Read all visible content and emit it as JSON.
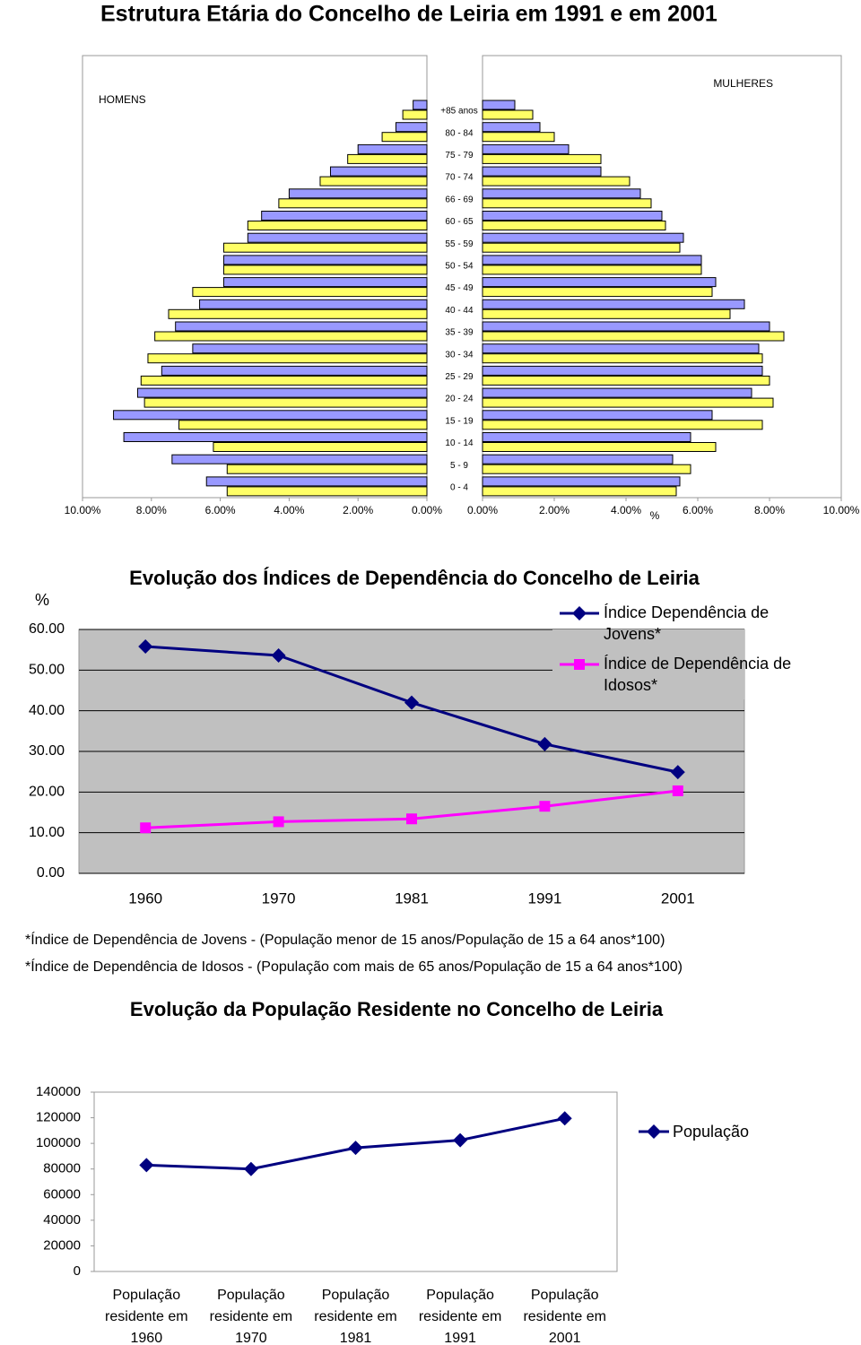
{
  "chart_data": [
    {
      "type": "pyramid",
      "title": "Estrutura Etária do Concelho de Leiria em 1991 e em 2001",
      "categories": [
        "+85 anos",
        "80 - 84",
        "75 - 79",
        "70 - 74",
        "66 - 69",
        "60 - 65",
        "55 - 59",
        "50 - 54",
        "45 - 49",
        "40 - 44",
        "35 - 39",
        "30 - 34",
        "25 - 29",
        "20 - 24",
        "15 - 19",
        "10 - 14",
        "5 - 9",
        "0 - 4"
      ],
      "xlabel": "%",
      "panels": [
        {
          "label": "HOMENS",
          "xlim": [
            10,
            0
          ],
          "xticks": [
            {
              "value": 10,
              "label": "10.00%"
            },
            {
              "value": 8,
              "label": "8.00%"
            },
            {
              "value": 6,
              "label": "6.00%"
            },
            {
              "value": 4,
              "label": "4.00%"
            },
            {
              "value": 2,
              "label": "2.00%"
            },
            {
              "value": 0,
              "label": "0.00%"
            }
          ],
          "series": [
            {
              "color": "#9999ff",
              "values": [
                0.4,
                0.9,
                2.0,
                2.8,
                4.0,
                4.8,
                5.2,
                5.9,
                5.9,
                6.6,
                7.3,
                6.8,
                7.7,
                8.4,
                9.1,
                8.8,
                7.4,
                6.4
              ]
            },
            {
              "color": "#ffff66",
              "values": [
                0.7,
                1.3,
                2.3,
                3.1,
                4.3,
                5.2,
                5.9,
                5.9,
                6.8,
                7.5,
                7.9,
                8.1,
                8.3,
                8.2,
                7.2,
                6.2,
                5.8,
                5.8
              ]
            }
          ]
        },
        {
          "label": "MULHERES",
          "xlim": [
            0,
            10
          ],
          "xticks": [
            {
              "value": 0,
              "label": "0.00%"
            },
            {
              "value": 2,
              "label": "2.00%"
            },
            {
              "value": 4,
              "label": "4.00%"
            },
            {
              "value": 6,
              "label": "6.00%"
            },
            {
              "value": 8,
              "label": "8.00%"
            },
            {
              "value": 10,
              "label": "10.00%"
            }
          ],
          "series": [
            {
              "color": "#9999ff",
              "values": [
                0.9,
                1.6,
                2.4,
                3.3,
                4.4,
                5.0,
                5.6,
                6.1,
                6.5,
                7.3,
                8.0,
                7.7,
                7.8,
                7.5,
                6.4,
                5.8,
                5.3,
                5.5
              ]
            },
            {
              "color": "#ffff66",
              "values": [
                1.4,
                2.0,
                3.3,
                4.1,
                4.7,
                5.1,
                5.5,
                6.1,
                6.4,
                6.9,
                8.4,
                7.8,
                8.0,
                8.1,
                7.8,
                6.5,
                5.8,
                5.4
              ]
            }
          ]
        }
      ]
    },
    {
      "type": "line",
      "title": "Evolução dos Índices de Dependência do Concelho de Leiria",
      "ylabel": "%",
      "categories": [
        "1960",
        "1970",
        "1981",
        "1991",
        "2001"
      ],
      "series": [
        {
          "name": "Índice Dependência de Jovens*",
          "color": "#000080",
          "marker": "diamond",
          "values": [
            55.8,
            53.6,
            42.0,
            31.8,
            24.9
          ]
        },
        {
          "name": "Índice de Dependência de Idosos*",
          "color": "#ff00ff",
          "marker": "square",
          "values": [
            11.2,
            12.7,
            13.4,
            16.5,
            20.3
          ]
        }
      ],
      "ylim": [
        0,
        60
      ],
      "yticks": [
        {
          "value": 0,
          "label": "0.00"
        },
        {
          "value": 10,
          "label": "10.00"
        },
        {
          "value": 20,
          "label": "20.00"
        },
        {
          "value": 30,
          "label": "30.00"
        },
        {
          "value": 40,
          "label": "40.00"
        },
        {
          "value": 50,
          "label": "50.00"
        },
        {
          "value": 60,
          "label": "60.00"
        }
      ],
      "grid": true,
      "legend": "upper right",
      "notes": [
        "*Índice de Dependência de Jovens - (População menor de 15 anos/População de 15 a 64 anos*100)",
        "*Índice de Dependência de Idosos - (População com mais de 65 anos/População de 15 a 64 anos*100)"
      ]
    },
    {
      "type": "line",
      "title": "Evolução da População Residente no Concelho de Leiria",
      "categories": [
        "População residente em 1960",
        "População residente em 1970",
        "População residente em 1981",
        "População residente em 1991",
        "População residente em 2001"
      ],
      "series": [
        {
          "name": "População",
          "color": "#000080",
          "marker": "diamond",
          "values": [
            83000,
            80000,
            96500,
            102500,
            119500
          ]
        }
      ],
      "ylim": [
        0,
        140000
      ],
      "yticks": [
        0,
        20000,
        40000,
        60000,
        80000,
        100000,
        120000,
        140000
      ],
      "grid": false,
      "legend": "right"
    }
  ]
}
